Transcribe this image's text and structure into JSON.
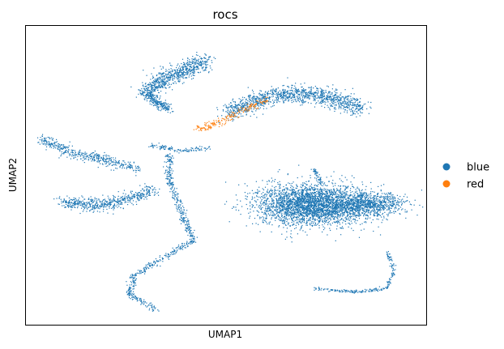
{
  "chart_data": {
    "type": "scatter",
    "title": "rocs",
    "xlabel": "UMAP1",
    "ylabel": "UMAP2",
    "xlim": [
      0,
      100
    ],
    "ylim": [
      0,
      100
    ],
    "ticks": "none",
    "grid": false,
    "legend": {
      "placement": "right",
      "entries": [
        {
          "label": "blue",
          "color": "#1f77b4"
        },
        {
          "label": "red",
          "color": "#ff7f0e"
        }
      ]
    },
    "series": [
      {
        "label": "blue",
        "color": "#1f77b4",
        "approx_points": 9000,
        "clusters": [
          {
            "shape": "stroke",
            "path": [
              [
                30,
                78
              ],
              [
                35,
                82
              ],
              [
                40,
                85
              ],
              [
                45,
                88
              ]
            ],
            "width": 4.0,
            "density": 700
          },
          {
            "shape": "stroke",
            "path": [
              [
                30,
                78
              ],
              [
                33,
                74
              ],
              [
                36,
                72
              ]
            ],
            "width": 2.2,
            "density": 250
          },
          {
            "shape": "stroke",
            "path": [
              [
                50,
                70
              ],
              [
                56,
                74
              ],
              [
                64,
                77
              ],
              [
                72,
                77
              ],
              [
                78,
                75
              ],
              [
                84,
                72
              ]
            ],
            "width": 4.0,
            "density": 1200
          },
          {
            "shape": "stroke",
            "path": [
              [
                4,
                62
              ],
              [
                12,
                57
              ],
              [
                20,
                55
              ],
              [
                28,
                52
              ]
            ],
            "width": 2.5,
            "density": 450
          },
          {
            "shape": "stroke",
            "path": [
              [
                9,
                41
              ],
              [
                18,
                40
              ],
              [
                26,
                42
              ],
              [
                32,
                45
              ]
            ],
            "width": 3.0,
            "density": 550
          },
          {
            "shape": "stroke",
            "path": [
              [
                36,
                57
              ],
              [
                36,
                48
              ],
              [
                39,
                38
              ],
              [
                42,
                28
              ],
              [
                34,
                22
              ],
              [
                27,
                16
              ],
              [
                26,
                10
              ],
              [
                33,
                5
              ]
            ],
            "width": 1.4,
            "density": 650
          },
          {
            "shape": "blob",
            "center": [
              71,
              40
            ],
            "radii": [
              13,
              7
            ],
            "density": 2800
          },
          {
            "shape": "blob",
            "center": [
              85,
              40
            ],
            "radii": [
              10,
              4
            ],
            "density": 1000
          },
          {
            "shape": "stroke",
            "path": [
              [
                72,
                52
              ],
              [
                74,
                47
              ]
            ],
            "width": 1.0,
            "density": 50
          },
          {
            "shape": "stroke",
            "path": [
              [
                72,
                12
              ],
              [
                82,
                11
              ],
              [
                90,
                12
              ],
              [
                92,
                18
              ],
              [
                90,
                25
              ]
            ],
            "width": 0.8,
            "density": 220
          },
          {
            "shape": "stroke",
            "path": [
              [
                31,
                60
              ],
              [
                39,
                58
              ],
              [
                46,
                59
              ]
            ],
            "width": 1.2,
            "density": 120
          }
        ]
      },
      {
        "label": "red",
        "color": "#ff7f0e",
        "approx_points": 200,
        "clusters": [
          {
            "shape": "stroke",
            "path": [
              [
                43,
                65
              ],
              [
                49,
                68
              ],
              [
                55,
                72
              ],
              [
                60,
                75
              ]
            ],
            "width": 1.8,
            "density": 200
          }
        ]
      }
    ]
  }
}
